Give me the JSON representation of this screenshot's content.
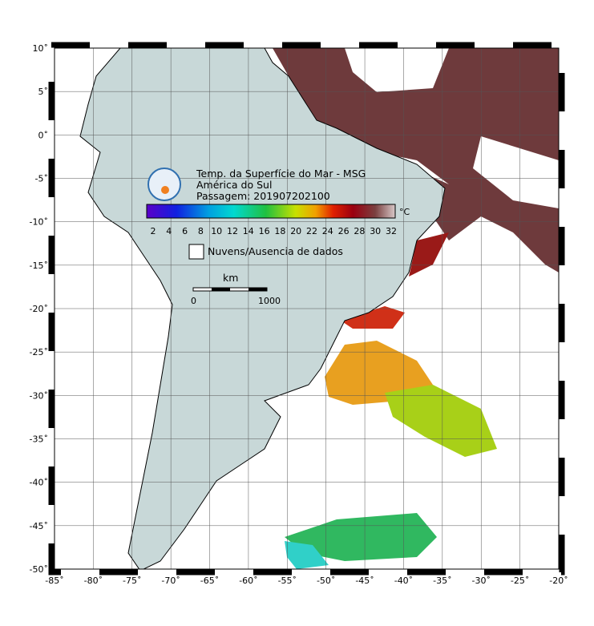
{
  "legend": {
    "title_lines": [
      "Temp. da Superfície do Mar - MSG",
      "América do Sul",
      "Passagem: 201907202100"
    ],
    "colorbar_labels": [
      "2",
      "4",
      "6",
      "8",
      "10",
      "12",
      "14",
      "16",
      "18",
      "20",
      "22",
      "24",
      "26",
      "28",
      "30",
      "32"
    ],
    "unit": "°C",
    "cloud_label": "Nuvens/Ausencia de dados"
  },
  "scale_bar": {
    "unit": "km",
    "start": "0",
    "end": "1000"
  },
  "lat_labels": [
    "10˚",
    "5˚",
    "0˚",
    "-5˚",
    "-10˚",
    "-15˚",
    "-20˚",
    "-25˚",
    "-30˚",
    "-35˚",
    "-40˚",
    "-45˚",
    "-50˚"
  ],
  "lon_labels": [
    "-85˚",
    "-80˚",
    "-75˚",
    "-70˚",
    "-65˚",
    "-60˚",
    "-55˚",
    "-50˚",
    "-45˚",
    "-40˚",
    "-35˚",
    "-30˚",
    "-25˚",
    "-20˚"
  ]
}
